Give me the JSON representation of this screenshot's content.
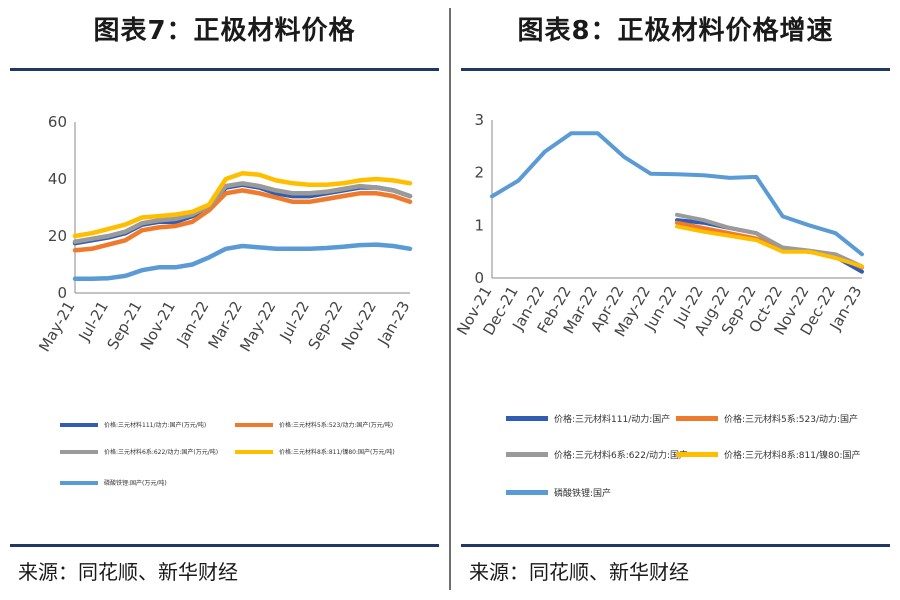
{
  "source_text": "来源：同花顺、新华财经",
  "chart_data": [
    {
      "type": "line",
      "title": "图表7：正极材料价格",
      "source": "来源：同花顺、新华财经",
      "categories": [
        "May-21",
        "Jun-21",
        "Jul-21",
        "Aug-21",
        "Sep-21",
        "Oct-21",
        "Nov-21",
        "Dec-21",
        "Jan-22",
        "Feb-22",
        "Mar-22",
        "Apr-22",
        "May-22",
        "Jun-22",
        "Jul-22",
        "Aug-22",
        "Sep-22",
        "Oct-22",
        "Nov-22",
        "Dec-22",
        "Jan-23"
      ],
      "tick_labels": [
        "May-21",
        "Jul-21",
        "Sep-21",
        "Nov-21",
        "Jan-22",
        "Mar-22",
        "May-22",
        "Jul-22",
        "Sep-22",
        "Nov-22",
        "Jan-23"
      ],
      "ylim": [
        0,
        60
      ],
      "yticks": [
        "0",
        "20",
        "40",
        "60"
      ],
      "xlabel": "",
      "ylabel": "",
      "series": [
        {
          "name": "价格:三元材料111/动力:国产(万元/吨)",
          "color": "#2e5db3",
          "values": [
            17.5,
            18.5,
            19.5,
            21,
            24,
            25,
            25,
            27,
            30,
            37,
            38,
            37,
            35,
            34,
            34,
            35,
            36,
            37,
            37,
            36,
            34
          ]
        },
        {
          "name": "价格:三元材料5系:523/动力:国产(万元/吨)",
          "color": "#f07a2c",
          "values": [
            15,
            15.5,
            17,
            18.5,
            22,
            23,
            23.5,
            25,
            29,
            35,
            36,
            35,
            33.5,
            32,
            32,
            33,
            34,
            35,
            35,
            34,
            32
          ]
        },
        {
          "name": "价格:三元材料6系:622/动力:国产(万元/吨)",
          "color": "#9a9a9a",
          "values": [
            18,
            19,
            20,
            21.5,
            24.5,
            25.5,
            26,
            27.5,
            30.5,
            37.5,
            38.5,
            37.5,
            36,
            35,
            35,
            35.5,
            36.5,
            37.5,
            37,
            36,
            34
          ]
        },
        {
          "name": "价格:三元材料8系:811/镍80:国产(万元/吨)",
          "color": "#ffbf00",
          "values": [
            20,
            21,
            22.5,
            24,
            26.5,
            27,
            27.5,
            28.5,
            31,
            40,
            42,
            41.5,
            39.5,
            38.5,
            38,
            38,
            38.5,
            39.5,
            40,
            39.5,
            38.5
          ]
        },
        {
          "name": "磷酸铁锂:国产(万元/吨)",
          "color": "#5b9bd5",
          "values": [
            5,
            5,
            5.2,
            6,
            8,
            9,
            9,
            10,
            12.5,
            15.5,
            16.5,
            16,
            15.5,
            15.5,
            15.5,
            15.8,
            16.2,
            16.8,
            17,
            16.5,
            15.5
          ]
        }
      ]
    },
    {
      "type": "line",
      "title": "图表8：正极材料价格增速",
      "source": "来源：同花顺、新华财经",
      "categories": [
        "Nov-21",
        "Dec-21",
        "Jan-22",
        "Feb-22",
        "Mar-22",
        "Apr-22",
        "May-22",
        "Jun-22",
        "Jul-22",
        "Aug-22",
        "Sep-22",
        "Oct-22",
        "Nov-22",
        "Dec-22",
        "Jan-23"
      ],
      "tick_labels": [
        "Nov-21",
        "Dec-21",
        "Jan-22",
        "Feb-22",
        "Mar-22",
        "Apr-22",
        "May-22",
        "Jun-22",
        "Jul-22",
        "Aug-22",
        "Sep-22",
        "Oct-22",
        "Nov-22",
        "Dec-22",
        "Jan-23"
      ],
      "ylim": [
        0,
        3
      ],
      "yticks": [
        "0",
        "1",
        "2",
        "3"
      ],
      "xlabel": "",
      "ylabel": "",
      "series": [
        {
          "name": "价格:三元材料111/动力:国产",
          "color": "#2e5db3",
          "values": [
            null,
            null,
            null,
            null,
            null,
            null,
            null,
            1.1,
            1.05,
            0.95,
            0.85,
            0.55,
            0.5,
            0.4,
            0.12
          ]
        },
        {
          "name": "价格:三元材料5系:523/动力:国产",
          "color": "#f07a2c",
          "values": [
            null,
            null,
            null,
            null,
            null,
            null,
            null,
            1.05,
            0.95,
            0.85,
            0.75,
            0.55,
            0.5,
            0.42,
            0.2
          ]
        },
        {
          "name": "价格:三元材料6系:622/动力:国产",
          "color": "#9a9a9a",
          "values": [
            null,
            null,
            null,
            null,
            null,
            null,
            null,
            1.2,
            1.1,
            0.95,
            0.85,
            0.58,
            0.52,
            0.45,
            0.22
          ]
        },
        {
          "name": "价格:三元材料8系:811/镍80:国产",
          "color": "#ffbf00",
          "values": [
            null,
            null,
            null,
            null,
            null,
            null,
            null,
            0.98,
            0.88,
            0.8,
            0.72,
            0.5,
            0.5,
            0.38,
            0.22
          ]
        },
        {
          "name": "磷酸铁锂:国产",
          "color": "#5b9bd5",
          "values": [
            1.55,
            1.85,
            2.4,
            2.75,
            2.75,
            2.3,
            1.98,
            1.97,
            1.95,
            1.9,
            1.92,
            1.17,
            1.0,
            0.85,
            0.45
          ]
        }
      ]
    }
  ]
}
